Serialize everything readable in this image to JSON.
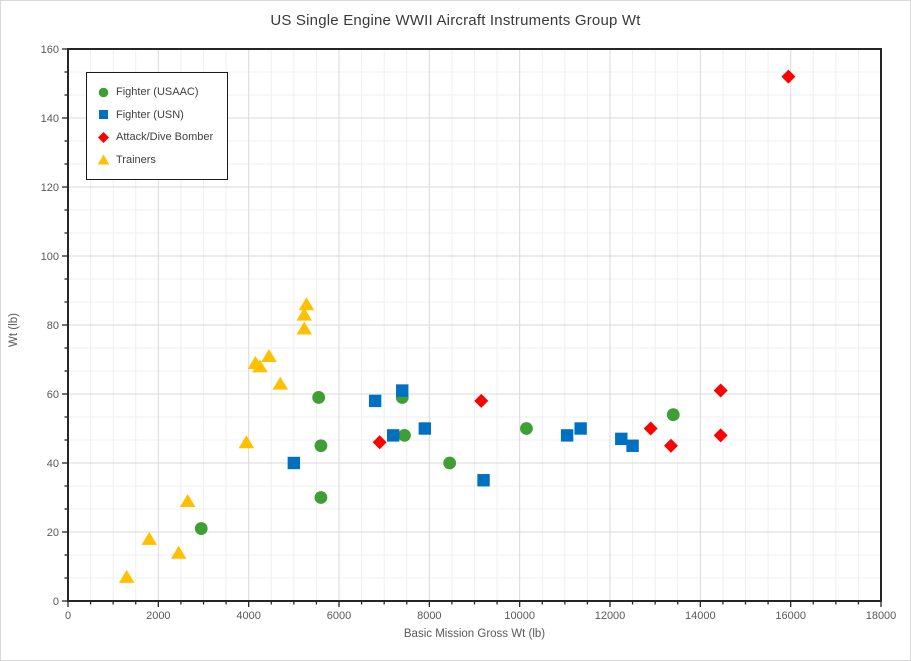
{
  "window": {
    "background": "#FFFFFF",
    "border_color": "#D9D9D9"
  },
  "styles": {
    "title_color": "#3A3A3A",
    "axis_text_color": "#595959",
    "legend_text_color": "#404040",
    "axis_line_color": "#262626",
    "major_grid_color": "#D9D9D9",
    "minor_grid_color": "#EFEFEF"
  },
  "chart_data": {
    "type": "scatter",
    "title": "US Single Engine WWII Aircraft Instruments Group Wt",
    "xlabel": "Basic Mission Gross Wt (lb)",
    "ylabel": "Wt (lb)",
    "xlim": [
      0,
      18000
    ],
    "ylim": [
      0,
      160
    ],
    "x_major": 2000,
    "x_minor": 500,
    "y_major": 20,
    "y_minor": 6.667,
    "x_tick_labels": [
      "0",
      "2000",
      "4000",
      "6000",
      "8000",
      "10000",
      "12000",
      "14000",
      "16000",
      "18000"
    ],
    "y_tick_labels": [
      "0",
      "20",
      "40",
      "60",
      "80",
      "100",
      "120",
      "140",
      "160"
    ],
    "grid": true,
    "legend_position": "top-left-inside",
    "series": [
      {
        "name": "Fighter (USAAC)",
        "marker": "circle",
        "color": "#3F9F35",
        "points": [
          [
            2950,
            21
          ],
          [
            5550,
            59
          ],
          [
            5600,
            45
          ],
          [
            5600,
            30
          ],
          [
            7400,
            59
          ],
          [
            7450,
            48
          ],
          [
            8450,
            40
          ],
          [
            10150,
            50
          ],
          [
            13400,
            54
          ]
        ]
      },
      {
        "name": "Fighter (USN)",
        "marker": "square",
        "color": "#0070C0",
        "points": [
          [
            5000,
            40
          ],
          [
            6800,
            58
          ],
          [
            7400,
            61
          ],
          [
            7200,
            48
          ],
          [
            7900,
            50
          ],
          [
            9200,
            35
          ],
          [
            11050,
            48
          ],
          [
            11350,
            50
          ],
          [
            12250,
            47
          ],
          [
            12500,
            45
          ]
        ]
      },
      {
        "name": "Attack/Dive Bomber",
        "marker": "diamond",
        "color": "#FF0000",
        "points": [
          [
            6900,
            46
          ],
          [
            9150,
            58
          ],
          [
            12900,
            50
          ],
          [
            13350,
            45
          ],
          [
            14450,
            61
          ],
          [
            14450,
            48
          ],
          [
            15950,
            152
          ]
        ]
      },
      {
        "name": "Trainers",
        "marker": "triangle",
        "color": "#FFC000",
        "points": [
          [
            1300,
            7
          ],
          [
            1800,
            18
          ],
          [
            2450,
            14
          ],
          [
            2650,
            29
          ],
          [
            3950,
            46
          ],
          [
            4150,
            69
          ],
          [
            4250,
            68
          ],
          [
            4450,
            71
          ],
          [
            4700,
            63
          ],
          [
            5230,
            79
          ],
          [
            5230,
            83
          ],
          [
            5280,
            86
          ]
        ]
      }
    ]
  }
}
